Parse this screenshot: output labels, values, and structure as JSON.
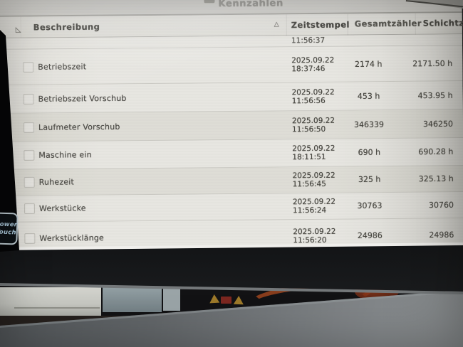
{
  "screen": {
    "title": "Kennzahlen",
    "table": {
      "headers": {
        "description": "Beschreibung",
        "timestamp": "Zeitstempel",
        "total": "Gesamtzähler",
        "shift": "Schichtzähler"
      },
      "sort_icon": "△",
      "corner_icon": "◺",
      "partial_row_time": "11:56:37",
      "rows": [
        {
          "description": "Betriebszeit",
          "date": "2025.09.22",
          "time": "18:37:46",
          "total": "2174 h",
          "shift": "2171.50 h"
        },
        {
          "description": "Betriebszeit Vorschub",
          "date": "2025.09.22",
          "time": "11:56:56",
          "total": "453 h",
          "shift": "453.95 h"
        },
        {
          "description": "Laufmeter Vorschub",
          "date": "2025.09.22",
          "time": "11:56:50",
          "total": "346339",
          "shift": "346250"
        },
        {
          "description": "Maschine ein",
          "date": "2025.09.22",
          "time": "18:11:51",
          "total": "690 h",
          "shift": "690.28 h"
        },
        {
          "description": "Ruhezeit",
          "date": "2025.09.22",
          "time": "11:56:45",
          "total": "325 h",
          "shift": "325.13 h"
        },
        {
          "description": "Werkstücke",
          "date": "2025.09.22",
          "time": "11:56:24",
          "total": "30763",
          "shift": "30760"
        },
        {
          "description": "Werkstücklänge",
          "date": "2025.09.22",
          "time": "11:56:20",
          "total": "24986",
          "shift": "24986"
        }
      ]
    }
  },
  "bezel": {
    "brand_line1": "Power",
    "brand_line2": "Touch"
  },
  "colors": {
    "screen_bg": "#e7e6e1",
    "row_alt_bg": "#deddd6",
    "header_text": "#3d3c37",
    "body_text": "#46453f",
    "bezel_black": "#0b0c0e",
    "brand_text": "#aecbdd",
    "warning_yellow": "#c09330",
    "warning_red": "#8f2c22"
  }
}
